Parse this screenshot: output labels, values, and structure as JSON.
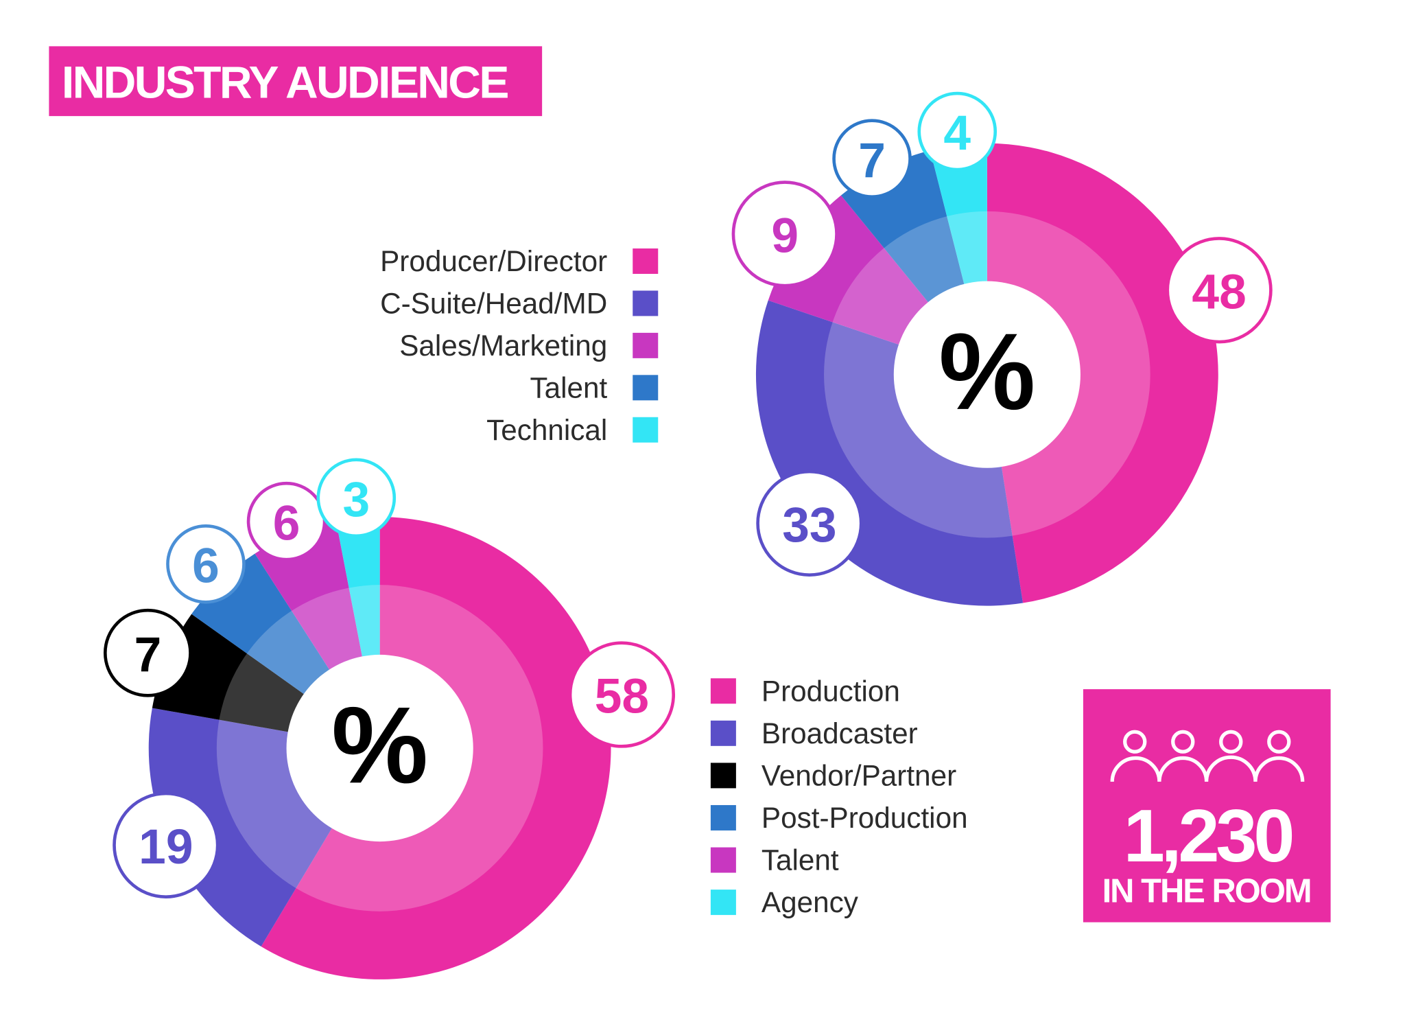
{
  "title": "INDUSTRY AUDIENCE",
  "colors": {
    "accent": "#e92ca3",
    "pink": "#e92ca3",
    "purple": "#5a4fc8",
    "magenta": "#c837c0",
    "blue": "#2e78c9",
    "cyan": "#33e5f5",
    "black": "#000000"
  },
  "chart_data": [
    {
      "type": "pie",
      "style": "donut",
      "center_label": "%",
      "legend_position": "left",
      "categories": [
        "Producer/Director",
        "C-Suite/Head/MD",
        "Sales/Marketing",
        "Talent",
        "Technical"
      ],
      "values": [
        48,
        33,
        9,
        7,
        4
      ],
      "colors": [
        "#e92ca3",
        "#5a4fc8",
        "#c837c0",
        "#2e78c9",
        "#33e5f5"
      ]
    },
    {
      "type": "pie",
      "style": "donut",
      "center_label": "%",
      "legend_position": "right",
      "categories": [
        "Production",
        "Broadcaster",
        "Vendor/Partner",
        "Post-Production",
        "Talent",
        "Agency"
      ],
      "values": [
        58,
        19,
        7,
        6,
        6,
        3
      ],
      "colors": [
        "#e92ca3",
        "#5a4fc8",
        "#000000",
        "#2e78c9",
        "#c837c0",
        "#33e5f5"
      ]
    }
  ],
  "stat": {
    "icon": "people-group-icon",
    "value": "1,230",
    "label": "IN THE ROOM"
  }
}
